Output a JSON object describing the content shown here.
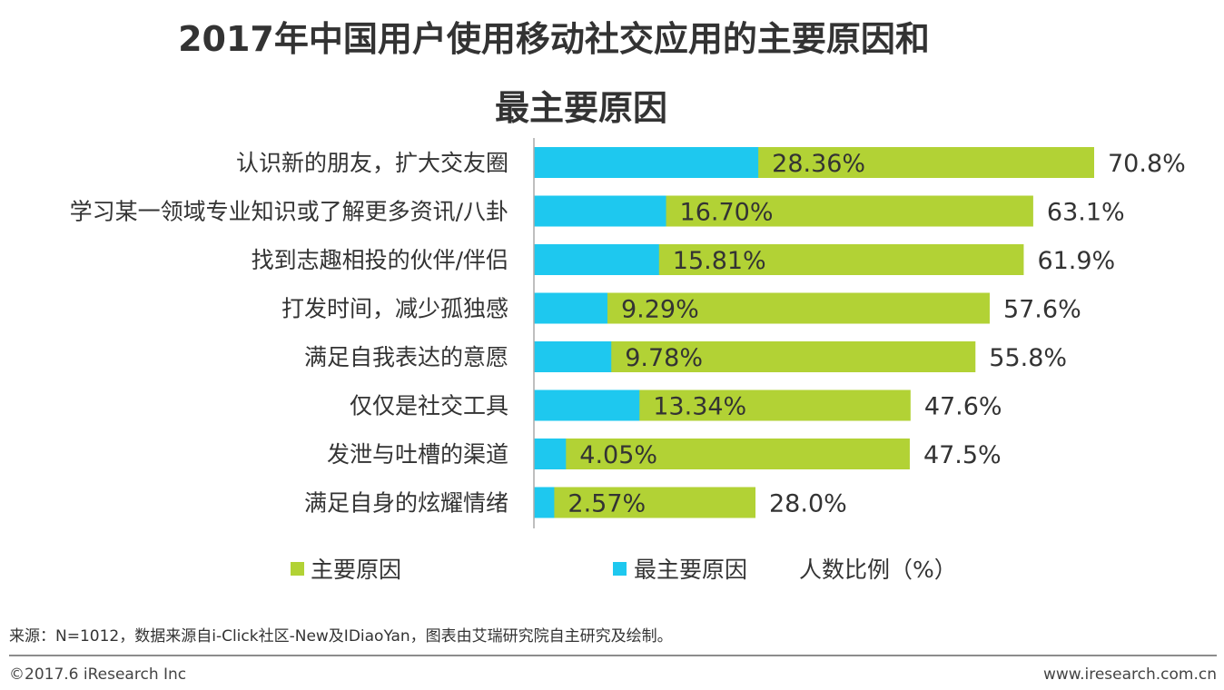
{
  "title_line1": "2017年中国用户使用移动社交应用的主要原因和",
  "title_line2": "最主要原因",
  "chart_data": {
    "type": "bar",
    "orientation": "horizontal",
    "categories": [
      "认识新的朋友，扩大交友圈",
      "学习某一领域专业知识或了解更多资讯/八卦",
      "找到志趣相投的伙伴/伴侣",
      "打发时间，减少孤独感",
      "满足自我表达的意愿",
      "仅仅是社交工具",
      "发泄与吐槽的渠道",
      "满足自身的炫耀情绪"
    ],
    "series": [
      {
        "name": "主要原因",
        "color": "#b2d235",
        "values": [
          70.8,
          63.1,
          61.9,
          57.6,
          55.8,
          47.6,
          47.5,
          28.0
        ],
        "labels": [
          "70.8%",
          "63.1%",
          "61.9%",
          "57.6%",
          "55.8%",
          "47.6%",
          "47.5%",
          "28.0%"
        ]
      },
      {
        "name": "最主要原因",
        "color": "#1ec8ef",
        "values": [
          28.36,
          16.7,
          15.81,
          9.29,
          9.78,
          13.34,
          4.05,
          2.57
        ],
        "labels": [
          "28.36%",
          "16.70%",
          "15.81%",
          "9.29%",
          "9.78%",
          "13.34%",
          "4.05%",
          "2.57%"
        ]
      }
    ],
    "legend": {
      "placement": "bottom",
      "items": [
        "主要原因",
        "最主要原因"
      ],
      "unit_label": "人数比例（%）"
    },
    "xlim": [
      0,
      80
    ],
    "grid": false
  },
  "footer": {
    "source": "来源：N=1012，数据来源自i-Click社区-New及IDiaoYan，图表由艾瑞研究院自主研究及绘制。",
    "copyright": "©2017.6 iResearch Inc",
    "website": "www.iresearch.com.cn"
  }
}
